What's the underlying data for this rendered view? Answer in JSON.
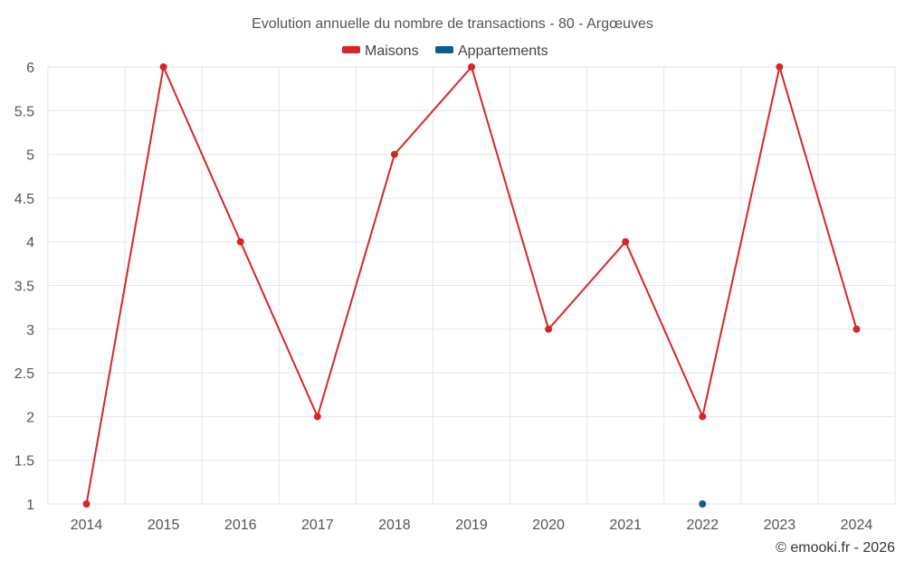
{
  "chart_data": {
    "type": "line",
    "title": "Evolution annuelle du nombre de transactions - 80 - Argœuves",
    "categories": [
      "2014",
      "2015",
      "2016",
      "2017",
      "2018",
      "2019",
      "2020",
      "2021",
      "2022",
      "2023",
      "2024"
    ],
    "series": [
      {
        "name": "Maisons",
        "color": "#d62728",
        "values": [
          1,
          6,
          4,
          2,
          5,
          6,
          3,
          4,
          2,
          6,
          3
        ]
      },
      {
        "name": "Appartements",
        "color": "#0b5e8e",
        "values": [
          null,
          null,
          null,
          null,
          null,
          null,
          null,
          null,
          1,
          null,
          null
        ]
      }
    ],
    "ylim": [
      1,
      6
    ],
    "yticks": [
      "1",
      "1.5",
      "2",
      "2.5",
      "3",
      "3.5",
      "4",
      "4.5",
      "5",
      "5.5",
      "6"
    ],
    "grid": true,
    "legend_position": "top-center",
    "credit": "© emooki.fr - 2026"
  }
}
